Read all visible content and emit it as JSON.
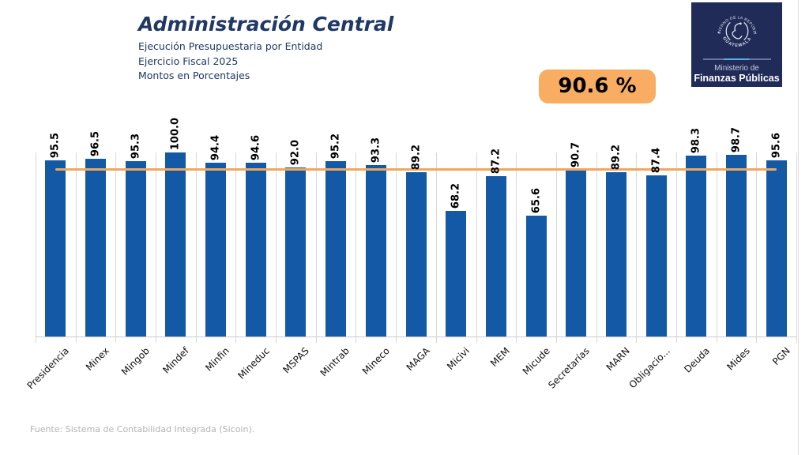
{
  "header": {
    "title": "Administración Central",
    "subtitle_lines": [
      "Ejecución Presupuestaria por Entidad",
      "Ejercicio Fiscal 2025",
      "Montos en Porcentajes"
    ]
  },
  "badge": {
    "label": "90.6 %",
    "bg": "#f8ad62"
  },
  "logo": {
    "seal_top_text": "GOBIERNO DE LA REPÚBLICA",
    "seal_bottom_text": "GUATEMALA",
    "line1": "Ministerio de",
    "line2": "Finanzas Públicas",
    "bg": "#202b57"
  },
  "footer": {
    "source": "Fuente: Sistema de Contabilidad Integrada (Sicoin)."
  },
  "chart_data": {
    "type": "bar",
    "title": "Administración Central",
    "subtitle": "Ejecución Presupuestaria por Entidad — Ejercicio Fiscal 2025 — Montos en Porcentajes",
    "categories": [
      "Presidencia",
      "Minex",
      "Mingob",
      "Mindef",
      "Minfin",
      "Mineduc",
      "MSPAS",
      "Mintrab",
      "Mineco",
      "MAGA",
      "Micivi",
      "MEM",
      "Micude",
      "Secretarías",
      "MARN",
      "Obligacio...",
      "Deuda",
      "Mides",
      "PGN"
    ],
    "values": [
      95.5,
      96.5,
      95.3,
      100.0,
      94.4,
      94.6,
      92.0,
      95.2,
      93.3,
      89.2,
      68.2,
      87.2,
      65.6,
      90.7,
      89.2,
      87.4,
      98.3,
      98.7,
      95.6
    ],
    "value_label_decimals": 1,
    "xlabel": "",
    "ylabel": "",
    "ylim": [
      0,
      100
    ],
    "grid": "vertical",
    "bar_color": "#1359a6",
    "grid_color": "#d9d9d9",
    "value_label_rotation_deg": 90,
    "category_label_rotation_deg": 45,
    "reference_line": {
      "value": 90.6,
      "color": "#f0a75c",
      "label": "90.6 %"
    },
    "legend": "none"
  }
}
